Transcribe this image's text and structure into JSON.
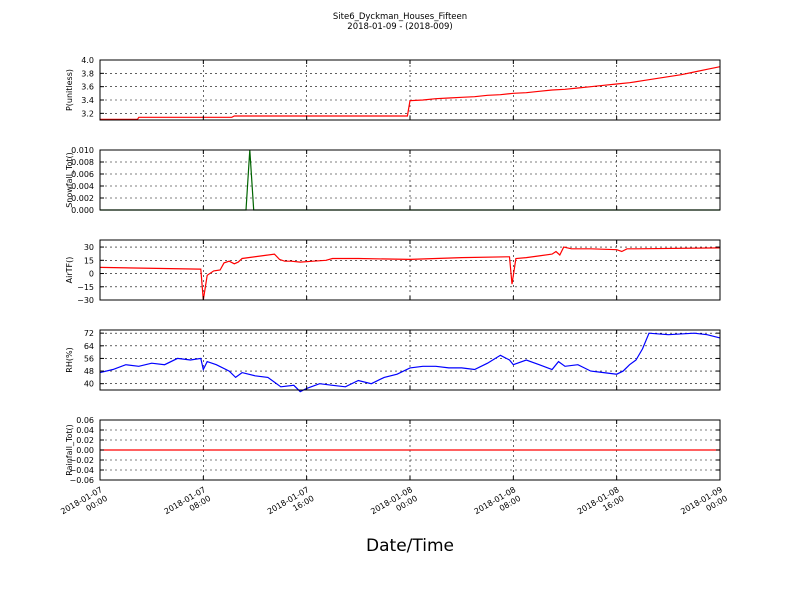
{
  "title": "Site6_Dyckman_Houses_Fifteen",
  "subtitle": "2018-01-09 - (2018-009)",
  "xlabel": "Date/Time",
  "x_ticks": [
    {
      "line1": "2018-01-07",
      "line2": "00:00",
      "t": 0
    },
    {
      "line1": "2018-01-07",
      "line2": "08:00",
      "t": 8
    },
    {
      "line1": "2018-01-07",
      "line2": "16:00",
      "t": 16
    },
    {
      "line1": "2018-01-08",
      "line2": "00:00",
      "t": 24
    },
    {
      "line1": "2018-01-08",
      "line2": "08:00",
      "t": 32
    },
    {
      "line1": "2018-01-08",
      "line2": "16:00",
      "t": 40
    },
    {
      "line1": "2018-01-09",
      "line2": "00:00",
      "t": 48
    }
  ],
  "chart_data": [
    {
      "type": "line",
      "ylabel": "P(unitless)",
      "ylim": [
        3.1,
        4.0
      ],
      "yticks": [
        "3.2",
        "3.4",
        "3.6",
        "3.8",
        "4.0"
      ],
      "ytick_values": [
        3.2,
        3.4,
        3.6,
        3.8,
        4.0
      ],
      "color": "#ff0000",
      "grid": true,
      "x": [
        0,
        2.9,
        3.0,
        10.2,
        10.4,
        23.8,
        24.0,
        25,
        26,
        27,
        28,
        29,
        30,
        31,
        32,
        33,
        34,
        35,
        36,
        37,
        38,
        39,
        40,
        41,
        42,
        43,
        44,
        45,
        46,
        47,
        48
      ],
      "values": [
        3.11,
        3.11,
        3.14,
        3.14,
        3.16,
        3.16,
        3.39,
        3.4,
        3.42,
        3.43,
        3.44,
        3.45,
        3.47,
        3.48,
        3.5,
        3.51,
        3.53,
        3.55,
        3.56,
        3.58,
        3.6,
        3.62,
        3.64,
        3.66,
        3.69,
        3.72,
        3.75,
        3.78,
        3.82,
        3.86,
        3.9
      ]
    },
    {
      "type": "line",
      "ylabel": "Snowfall_Tot()",
      "ylim": [
        0.0,
        0.01
      ],
      "yticks": [
        "0.000",
        "0.002",
        "0.004",
        "0.006",
        "0.008",
        "0.010"
      ],
      "ytick_values": [
        0.0,
        0.002,
        0.004,
        0.006,
        0.008,
        0.01
      ],
      "color": "#006400",
      "grid": true,
      "x": [
        0,
        11.3,
        11.6,
        11.9,
        48
      ],
      "values": [
        0,
        0,
        0.01,
        0,
        0
      ]
    },
    {
      "type": "line",
      "ylabel": "AirTF()",
      "ylim": [
        -30,
        38
      ],
      "yticks": [
        "30",
        "15",
        "0",
        "−15",
        "−30"
      ],
      "ytick_values": [
        30,
        15,
        0,
        -15,
        -30
      ],
      "color": "#ff0000",
      "grid": true,
      "x": [
        0,
        7.7,
        7.8,
        8.0,
        8.3,
        8.8,
        9.3,
        9.6,
        10.0,
        10.4,
        10.7,
        11.0,
        11.5,
        12.5,
        13.5,
        13.9,
        14.3,
        14.8,
        15.5,
        16.5,
        17.5,
        18.0,
        20.0,
        24.0,
        28.0,
        31.5,
        31.7,
        31.9,
        32.2,
        33.0,
        34.0,
        35.0,
        35.3,
        35.6,
        35.9,
        36.5,
        38.0,
        40.0,
        40.4,
        40.8,
        41.5,
        48.0
      ],
      "values": [
        7,
        5,
        5,
        -30,
        -2,
        3,
        4,
        12,
        14,
        11,
        13,
        17,
        18,
        20,
        22,
        16,
        14,
        14,
        13,
        14,
        15,
        17,
        17,
        16,
        18,
        19,
        19,
        -12,
        17,
        18,
        20,
        22,
        25,
        21,
        30,
        28,
        28,
        27,
        25,
        28,
        28,
        29
      ]
    },
    {
      "type": "line",
      "ylabel": "RH(%)",
      "ylim": [
        36,
        74
      ],
      "yticks": [
        "72",
        "64",
        "56",
        "48",
        "40"
      ],
      "ytick_values": [
        72,
        64,
        56,
        48,
        40
      ],
      "color": "#0000ff",
      "grid": true,
      "x": [
        0,
        1.0,
        2.0,
        3.0,
        4.0,
        5.0,
        6.0,
        7.0,
        7.8,
        8.0,
        8.3,
        9.0,
        10.0,
        10.5,
        11.0,
        12.0,
        13.0,
        14.0,
        15.0,
        15.5,
        16.0,
        17.0,
        18.0,
        19.0,
        20.0,
        21.0,
        22.0,
        23.0,
        24.0,
        25.0,
        26.0,
        27.0,
        28.0,
        29.0,
        30.0,
        31.0,
        31.7,
        32.0,
        33.0,
        34.0,
        35.0,
        35.5,
        36.0,
        37.0,
        38.0,
        39.0,
        40.0,
        40.5,
        41.0,
        41.5,
        42.0,
        42.5,
        44.0,
        46.0,
        47.0,
        48.0
      ],
      "values": [
        47,
        49,
        52,
        51,
        53,
        52,
        56,
        55,
        56,
        49,
        54,
        52,
        48,
        44,
        47,
        45,
        44,
        38,
        39,
        35,
        37,
        40,
        39,
        38,
        42,
        40,
        44,
        46,
        50,
        51,
        51,
        50,
        50,
        49,
        53,
        58,
        55,
        52,
        55,
        52,
        49,
        54,
        51,
        52,
        48,
        47,
        46,
        48,
        52,
        55,
        62,
        72,
        71,
        72,
        71,
        69
      ]
    },
    {
      "type": "line",
      "ylabel": "Rainfall_Tot()",
      "ylim": [
        -0.06,
        0.06
      ],
      "yticks": [
        "0.06",
        "0.04",
        "0.02",
        "0.00",
        "−0.02",
        "−0.04",
        "−0.06"
      ],
      "ytick_values": [
        0.06,
        0.04,
        0.02,
        0.0,
        -0.02,
        -0.04,
        -0.06
      ],
      "color": "#ff0000",
      "grid": true,
      "x": [
        0,
        48
      ],
      "values": [
        0,
        0
      ]
    }
  ]
}
